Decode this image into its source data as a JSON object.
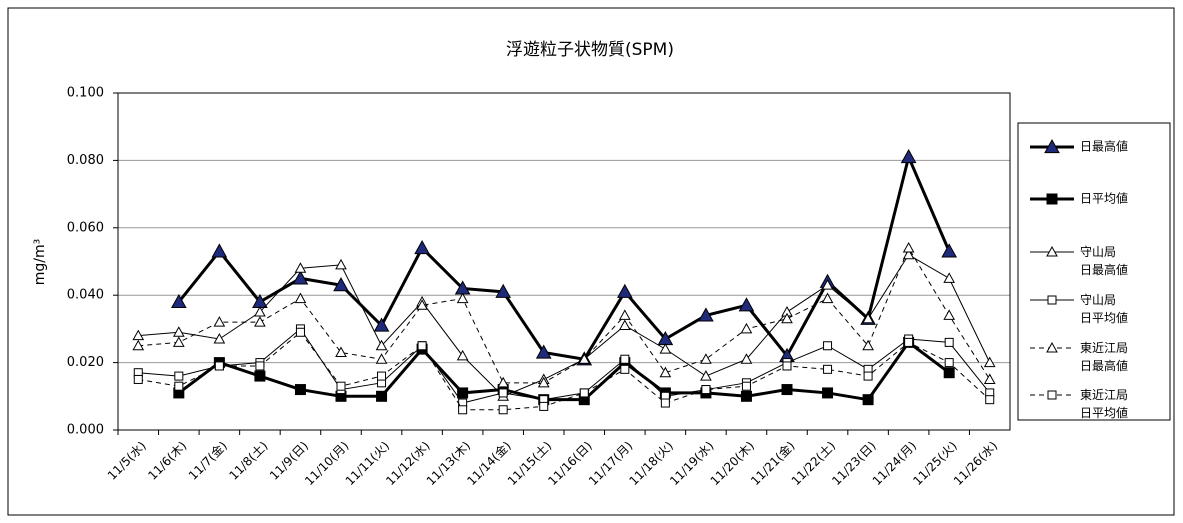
{
  "chart_data": {
    "type": "line",
    "title": "浮遊粒子状物質(SPM)",
    "y_label": "mg/m³",
    "categories": [
      "11/5(水)",
      "11/6(木)",
      "11/7(金)",
      "11/8(土)",
      "11/9(日)",
      "11/10(月)",
      "11/11(火)",
      "11/12(水)",
      "11/13(木)",
      "11/14(金)",
      "11/15(土)",
      "11/16(日)",
      "11/17(月)",
      "11/18(火)",
      "11/19(水)",
      "11/20(木)",
      "11/21(金)",
      "11/22(土)",
      "11/23(日)",
      "11/24(月)",
      "11/25(火)",
      "11/26(水)"
    ],
    "series": [
      {
        "name": "日最高値",
        "color": "#000000",
        "line_width": 3,
        "dash": "none",
        "marker": "triangle",
        "marker_fill": "#1f2a7a",
        "values": [
          null,
          0.038,
          0.053,
          0.038,
          0.045,
          0.043,
          0.031,
          0.054,
          0.042,
          0.041,
          0.023,
          0.021,
          0.041,
          0.027,
          0.034,
          0.037,
          0.022,
          0.044,
          0.033,
          0.081,
          0.053,
          null
        ]
      },
      {
        "name": "日平均値",
        "color": "#000000",
        "line_width": 3,
        "dash": "none",
        "marker": "square",
        "marker_fill": "#000000",
        "values": [
          null,
          0.011,
          0.02,
          0.016,
          0.012,
          0.01,
          0.01,
          0.024,
          0.011,
          0.012,
          0.009,
          0.009,
          0.02,
          0.011,
          0.011,
          0.01,
          0.012,
          0.011,
          0.009,
          0.026,
          0.017,
          null
        ]
      },
      {
        "name": "守山局 日最高値",
        "color": "#000000",
        "line_width": 1,
        "dash": "none",
        "marker": "triangle",
        "marker_fill": "#ffffff",
        "values": [
          0.028,
          0.029,
          0.027,
          0.035,
          0.048,
          0.049,
          0.025,
          0.038,
          0.022,
          0.01,
          0.015,
          0.021,
          0.031,
          0.024,
          0.016,
          0.021,
          0.035,
          0.043,
          0.033,
          0.052,
          0.045,
          0.02
        ]
      },
      {
        "name": "守山局 日平均値",
        "color": "#000000",
        "line_width": 1,
        "dash": "none",
        "marker": "square",
        "marker_fill": "#ffffff",
        "values": [
          0.017,
          0.016,
          0.019,
          0.02,
          0.03,
          0.012,
          0.014,
          0.025,
          0.008,
          0.011,
          0.009,
          0.011,
          0.021,
          0.01,
          0.012,
          0.014,
          0.02,
          0.025,
          0.018,
          0.027,
          0.026,
          0.011
        ]
      },
      {
        "name": "東近江局 日最高値",
        "color": "#000000",
        "line_width": 1,
        "dash": "5,4",
        "marker": "triangle",
        "marker_fill": "#ffffff",
        "values": [
          0.025,
          0.026,
          0.032,
          0.032,
          0.039,
          0.023,
          0.021,
          0.037,
          0.039,
          0.014,
          0.014,
          0.021,
          0.034,
          0.017,
          0.021,
          0.03,
          0.033,
          0.039,
          0.025,
          0.054,
          0.034,
          0.015
        ]
      },
      {
        "name": "東近江局 日平均値",
        "color": "#000000",
        "line_width": 1,
        "dash": "5,4",
        "marker": "square",
        "marker_fill": "#ffffff",
        "values": [
          0.015,
          0.013,
          0.019,
          0.019,
          0.029,
          0.013,
          0.016,
          0.025,
          0.006,
          0.006,
          0.007,
          0.011,
          0.018,
          0.008,
          0.012,
          0.013,
          0.019,
          0.018,
          0.016,
          0.026,
          0.02,
          0.009
        ]
      }
    ],
    "ylim": [
      0,
      0.1
    ],
    "yticks": [
      {
        "value": 0,
        "label": "0.000"
      },
      {
        "value": 0.02,
        "label": "0.020"
      },
      {
        "value": 0.04,
        "label": "0.040"
      },
      {
        "value": 0.06,
        "label": "0.060"
      },
      {
        "value": 0.08,
        "label": "0.080"
      },
      {
        "value": 0.1,
        "label": "0.100"
      }
    ],
    "grid": true,
    "legend": "right"
  }
}
